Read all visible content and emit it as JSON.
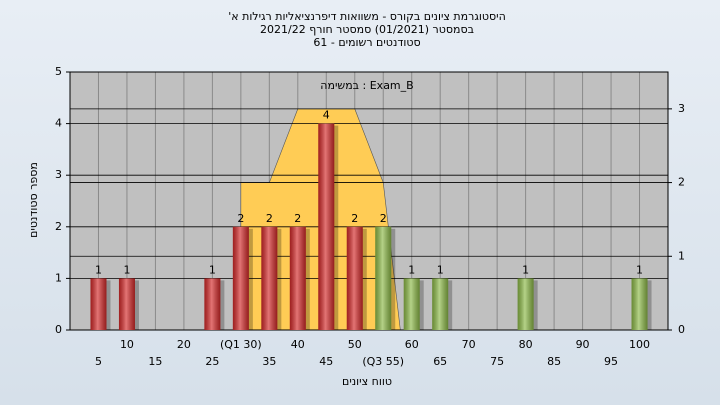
{
  "chart_data": {
    "type": "bar",
    "title": [
      "'היסטוגרמת ציונים בקורס - משוואות דיפרנציאליות רגילות א",
      "בסמסטר  (01/2021)  סמסטר חורף  2021/22",
      "סטודנטים רשומים - 61"
    ],
    "annotation": "במשימה : Exam_B",
    "x_label": "טווח ציונים",
    "y_label": "מספר סטודנטים",
    "x": [
      5,
      10,
      15,
      20,
      25,
      30,
      35,
      40,
      45,
      50,
      55,
      60,
      65,
      70,
      75,
      80,
      85,
      90,
      95,
      100
    ],
    "values": [
      1,
      1,
      0,
      0,
      1,
      2,
      2,
      2,
      4,
      2,
      2,
      1,
      1,
      0,
      0,
      1,
      0,
      0,
      0,
      1
    ],
    "colors": [
      "#d42a2a",
      "#d42a2a",
      "#d42a2a",
      "#d42a2a",
      "#d42a2a",
      "#d42a2a",
      "#d42a2a",
      "#d42a2a",
      "#d42a2a",
      "#d42a2a",
      "#8dba48",
      "#8dba48",
      "#8dba48",
      "#8dba48",
      "#8dba48",
      "#8dba48",
      "#8dba48",
      "#8dba48",
      "#8dba48",
      "#8dba48"
    ],
    "xlim": [
      0,
      105
    ],
    "xticks": [
      5,
      10,
      15,
      20,
      25,
      {
        "value": 30,
        "label": "(Q1 30)"
      },
      35,
      40,
      45,
      50,
      {
        "value": 55,
        "label": "(Q3 55)"
      },
      60,
      65,
      70,
      75,
      80,
      85,
      90,
      95,
      100
    ],
    "ylim": [
      0,
      5
    ],
    "yticks": [
      0,
      1,
      2,
      3,
      4,
      5
    ],
    "y2lim": [
      0,
      3.5
    ],
    "y2ticks": [
      0,
      1,
      2,
      3
    ],
    "area": {
      "axis": "y2",
      "color": "#ffcc55",
      "x": [
        30,
        30,
        35,
        40,
        50,
        55,
        58
      ],
      "values": [
        0,
        2,
        2,
        3,
        3,
        2,
        0
      ]
    },
    "grid": true
  }
}
